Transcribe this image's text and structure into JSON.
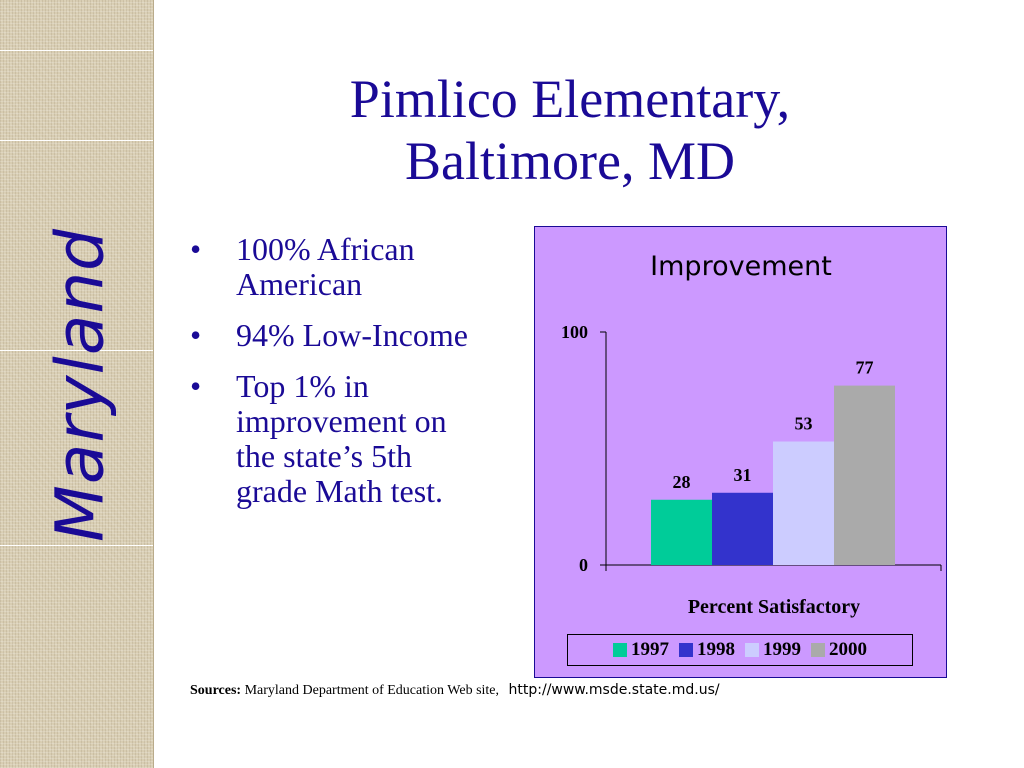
{
  "sidebar": {
    "word": "Maryland"
  },
  "title": {
    "line1": "Pimlico Elementary,",
    "line2": "Baltimore, MD"
  },
  "bullets": [
    {
      "marker": "•",
      "text": "100% African American"
    },
    {
      "marker": "•",
      "text": "94% Low-Income"
    },
    {
      "marker": "•",
      "text": "Top 1% in improvement on the state’s 5th grade Math test."
    }
  ],
  "chart_data": {
    "type": "bar",
    "title": "Improvement",
    "xlabel": "Percent Satisfactory",
    "ylabel": "",
    "ylim": [
      0,
      100
    ],
    "yticks": [
      "0",
      "100"
    ],
    "categories": [
      "1997",
      "1998",
      "1999",
      "2000"
    ],
    "values": [
      28,
      31,
      53,
      77
    ],
    "colors": [
      "#00cc99",
      "#3333cc",
      "#ccccff",
      "#aaaaaa"
    ],
    "legend_position": "bottom",
    "grid": false,
    "background": "#cc99ff"
  },
  "source": {
    "label": "Sources:",
    "text": "Maryland Department of Education Web site,",
    "url": "http://www.msde.state.md.us/"
  }
}
